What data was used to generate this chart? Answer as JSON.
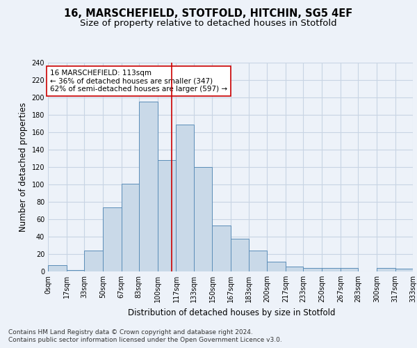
{
  "title_line1": "16, MARSCHEFIELD, STOTFOLD, HITCHIN, SG5 4EF",
  "title_line2": "Size of property relative to detached houses in Stotfold",
  "xlabel": "Distribution of detached houses by size in Stotfold",
  "ylabel": "Number of detached properties",
  "annotation_line1": "16 MARSCHEFIELD: 113sqm",
  "annotation_line2": "← 36% of detached houses are smaller (347)",
  "annotation_line3": "62% of semi-detached houses are larger (597) →",
  "marker_value": 113,
  "bin_edges": [
    0,
    17,
    33,
    50,
    67,
    83,
    100,
    117,
    133,
    150,
    167,
    183,
    200,
    217,
    233,
    250,
    267,
    283,
    300,
    317,
    333
  ],
  "bar_values": [
    7,
    2,
    24,
    74,
    101,
    195,
    128,
    169,
    120,
    53,
    38,
    24,
    11,
    6,
    4,
    4,
    4,
    0,
    4,
    3
  ],
  "bar_color": "#c9d9e8",
  "bar_edge_color": "#5b8db8",
  "marker_color": "#cc0000",
  "grid_color": "#c8d4e4",
  "background_color": "#edf2f9",
  "plot_bg_color": "#edf2f9",
  "annotation_box_color": "#ffffff",
  "annotation_box_edge": "#cc0000",
  "footer_line1": "Contains HM Land Registry data © Crown copyright and database right 2024.",
  "footer_line2": "Contains public sector information licensed under the Open Government Licence v3.0.",
  "ylim": [
    0,
    240
  ],
  "yticks": [
    0,
    20,
    40,
    60,
    80,
    100,
    120,
    140,
    160,
    180,
    200,
    220,
    240
  ],
  "title_fontsize": 10.5,
  "subtitle_fontsize": 9.5,
  "axis_label_fontsize": 8.5,
  "tick_fontsize": 7,
  "annotation_fontsize": 7.5,
  "footer_fontsize": 6.5
}
